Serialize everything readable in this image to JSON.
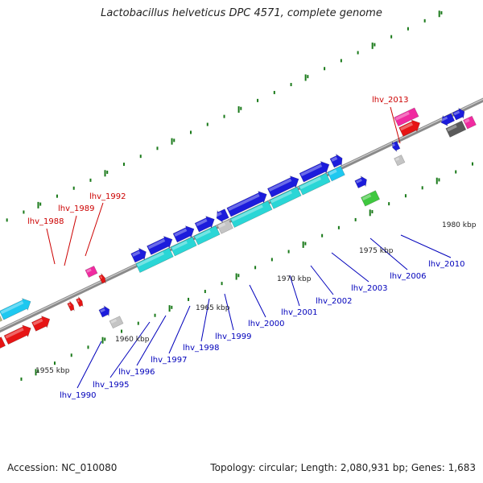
{
  "title": "Lactobacillus helveticus DPC 4571, complete genome",
  "footer": {
    "accession": "Accession: NC_010080",
    "summary": "Topology: circular; Length: 2,080,931 bp; Genes: 1,683"
  },
  "colors": {
    "blue": "#1c1cdc",
    "red": "#e61515",
    "cyan": "#2ad6d6",
    "skyblue": "#1ec8f0",
    "magenta": "#f02aa0",
    "green": "#3fc83f",
    "gray": "#c4c4c4",
    "darkgray": "#5a5a5a",
    "olive": "#b4b47a",
    "backbone": "#8a8a8a",
    "tick": "#1a7a1a",
    "label_red": "#cc0000",
    "label_blue": "#0000bb"
  },
  "scale_ticks": [
    {
      "label": "1955 kbp"
    },
    {
      "label": "1960 kbp"
    },
    {
      "label": "1965 kbp"
    },
    {
      "label": "1970 kbp"
    },
    {
      "label": "1975 kbp"
    },
    {
      "label": "1980 kbp"
    }
  ],
  "gene_labels": [
    {
      "id": "lhv_1988",
      "text": "lhv_1988",
      "color": "label_red"
    },
    {
      "id": "lhv_1989",
      "text": "lhv_1989",
      "color": "label_red"
    },
    {
      "id": "lhv_1992",
      "text": "lhv_1992",
      "color": "label_red"
    },
    {
      "id": "lhv_2013",
      "text": "lhv_2013",
      "color": "label_red"
    },
    {
      "id": "lhv_1990",
      "text": "lhv_1990",
      "color": "label_blue"
    },
    {
      "id": "lhv_1995",
      "text": "lhv_1995",
      "color": "label_blue"
    },
    {
      "id": "lhv_1996",
      "text": "lhv_1996",
      "color": "label_blue"
    },
    {
      "id": "lhv_1997",
      "text": "lhv_1997",
      "color": "label_blue"
    },
    {
      "id": "lhv_1998",
      "text": "lhv_1998",
      "color": "label_blue"
    },
    {
      "id": "lhv_1999",
      "text": "lhv_1999",
      "color": "label_blue"
    },
    {
      "id": "lhv_2000",
      "text": "lhv_2000",
      "color": "label_blue"
    },
    {
      "id": "lhv_2001",
      "text": "lhv_2001",
      "color": "label_blue"
    },
    {
      "id": "lhv_2002",
      "text": "lhv_2002",
      "color": "label_blue"
    },
    {
      "id": "lhv_2003",
      "text": "lhv_2003",
      "color": "label_blue"
    },
    {
      "id": "lhv_2006",
      "text": "lhv_2006",
      "color": "label_blue"
    },
    {
      "id": "lhv_2010",
      "text": "lhv_2010",
      "color": "label_blue"
    }
  ]
}
